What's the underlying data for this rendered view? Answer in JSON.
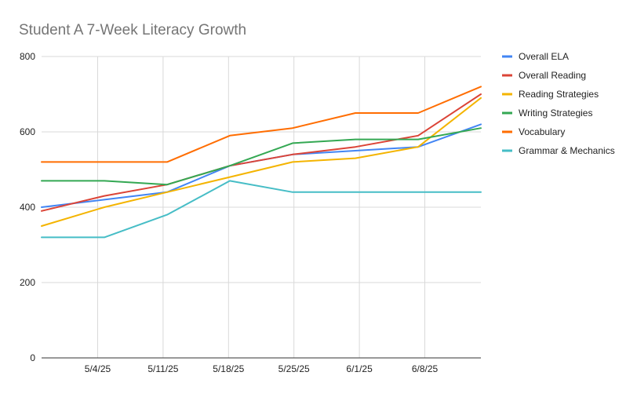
{
  "chart_data": {
    "type": "line",
    "title": "Student A 7-Week Literacy Growth",
    "xlabel": "",
    "ylabel": "",
    "ylim": [
      0,
      800
    ],
    "y_ticks": [
      "0",
      "200",
      "400",
      "600",
      "800"
    ],
    "x_tick_labels": [
      "5/4/25",
      "5/11/25",
      "5/18/25",
      "5/25/25",
      "6/1/25",
      "6/8/25"
    ],
    "x": [
      "4/28/25",
      "5/3/25",
      "5/10/25",
      "5/17/25",
      "5/24/25",
      "5/31/25",
      "6/7/25",
      "6/14/25"
    ],
    "grid": true,
    "legend_position": "right",
    "series": [
      {
        "name": "Overall ELA",
        "color": "#4285f4",
        "values": [
          400,
          420,
          440,
          510,
          540,
          550,
          560,
          620
        ]
      },
      {
        "name": "Overall Reading",
        "color": "#db4437",
        "values": [
          390,
          430,
          460,
          510,
          540,
          560,
          590,
          700
        ]
      },
      {
        "name": "Reading Strategies",
        "color": "#f4b400",
        "values": [
          350,
          400,
          440,
          480,
          520,
          530,
          560,
          690
        ]
      },
      {
        "name": "Writing Strategies",
        "color": "#34a853",
        "values": [
          470,
          470,
          460,
          510,
          570,
          580,
          580,
          610
        ]
      },
      {
        "name": "Vocabulary",
        "color": "#ff6d01",
        "values": [
          520,
          520,
          520,
          590,
          610,
          650,
          650,
          720
        ]
      },
      {
        "name": "Grammar & Mechanics",
        "color": "#46bdc6",
        "values": [
          320,
          320,
          380,
          470,
          440,
          440,
          440,
          440
        ]
      }
    ]
  }
}
